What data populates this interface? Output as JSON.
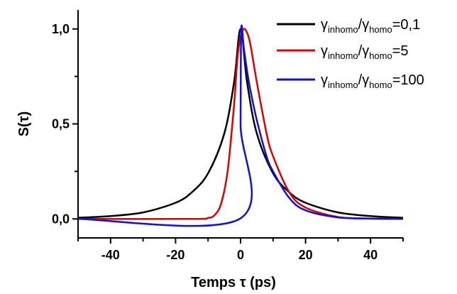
{
  "chart_data": {
    "type": "line",
    "title": "",
    "xlabel": "Temps τ (ps)",
    "ylabel": "S(τ)",
    "xlim": [
      -50,
      50
    ],
    "ylim": [
      -0.1,
      1.1
    ],
    "x_ticks": [
      -40,
      -20,
      0,
      20,
      40
    ],
    "x_tick_labels": [
      "-40",
      "-20",
      "0",
      "20",
      "40"
    ],
    "y_ticks": [
      0,
      0.5,
      1.0
    ],
    "y_tick_labels": [
      "0,0",
      "0,5",
      "1,0"
    ],
    "grid": false,
    "legend_position": "top-right",
    "series": [
      {
        "name": "γinhomo/γhomo=0,1",
        "legend": {
          "g1": "γ",
          "s1": "inhomo",
          "slash": "/",
          "g2": "γ",
          "s2": "homo",
          "value": "=0,1"
        },
        "color": "#000000",
        "x": [
          -50,
          -40,
          -30,
          -20,
          -15,
          -10,
          -5,
          -2,
          0,
          2,
          5,
          10,
          15,
          20,
          30,
          40,
          50
        ],
        "y": [
          0.006,
          0.015,
          0.034,
          0.085,
          0.14,
          0.24,
          0.45,
          0.72,
          1.0,
          0.72,
          0.45,
          0.24,
          0.14,
          0.085,
          0.034,
          0.015,
          0.006
        ]
      },
      {
        "name": "γinhomo/γhomo=5",
        "legend": {
          "g1": "γ",
          "s1": "inhomo",
          "slash": "/",
          "g2": "γ",
          "s2": "homo",
          "value": "=5"
        },
        "color": "#dd0000",
        "x": [
          -50,
          -15,
          -10,
          -8,
          -6,
          -4,
          -2,
          -1,
          0,
          1,
          2,
          3,
          5,
          8,
          10,
          15,
          20,
          30,
          40,
          50
        ],
        "y": [
          0,
          0,
          0.005,
          0.02,
          0.08,
          0.25,
          0.6,
          0.84,
          0.96,
          1.0,
          0.98,
          0.92,
          0.72,
          0.45,
          0.33,
          0.14,
          0.06,
          0.01,
          0.002,
          0
        ],
        "peak_x": 1
      },
      {
        "name": "γinhomo/γhomo=100",
        "legend": {
          "g1": "γ",
          "s1": "inhomo",
          "slash": "/",
          "g2": "γ",
          "s2": "homo",
          "value": "=100"
        },
        "color": "#1010dd",
        "x": [
          -50,
          -0.3,
          0,
          0.2,
          1,
          2,
          3,
          5,
          8,
          10,
          15,
          20,
          30,
          40,
          50
        ],
        "y": [
          0,
          0,
          0.5,
          1.0,
          0.9,
          0.78,
          0.68,
          0.52,
          0.33,
          0.25,
          0.11,
          0.045,
          0.008,
          0.002,
          0
        ]
      }
    ]
  }
}
